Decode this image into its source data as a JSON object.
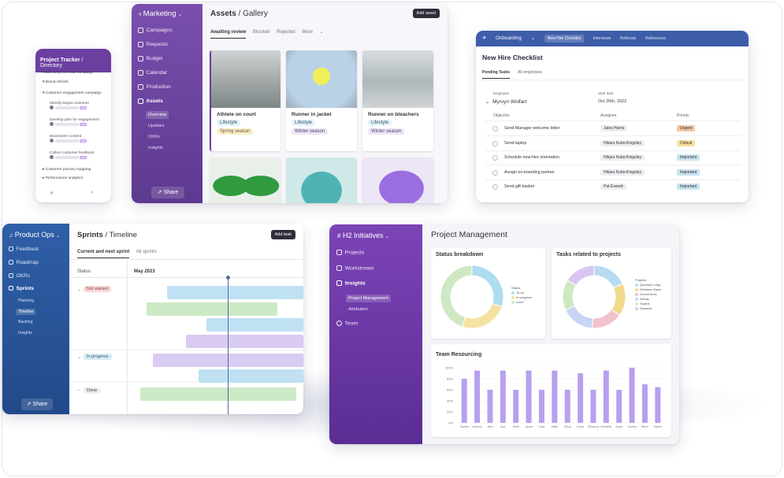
{
  "project_tracker": {
    "title": "Project Tracker",
    "breadcrumb": "Directory",
    "items": [
      "Marketing overhaul campaign",
      "Brand refresh",
      "Customer engagement campaign",
      "Identify target customer",
      "Develop plan for engagement",
      "Brainstorm content",
      "Collect customer feedback",
      "Customer journey mapping",
      "Performance analytics"
    ]
  },
  "marketing": {
    "workspace": "Marketing",
    "nav": [
      "Campaigns",
      "Requests",
      "Budget",
      "Calendar",
      "Production",
      "Assets"
    ],
    "subnav": [
      "Overview",
      "Updates",
      "OKRs",
      "Insights"
    ],
    "share": "Share",
    "title": "Assets",
    "breadcrumb": "Gallery",
    "add_button": "Add asset",
    "tabs": [
      "Awaiting review",
      "Blocked",
      "Rejected",
      "More"
    ],
    "tiles": [
      {
        "name": "Athlete  on court",
        "tag1": "Lifestyle",
        "tag2": "Spring season"
      },
      {
        "name": "Runner in jacket",
        "tag1": "Lifestyle",
        "tag2": "Winter season"
      },
      {
        "name": "Runner on bleachers",
        "tag1": "Lifestyle",
        "tag2": "Winter season"
      }
    ]
  },
  "onboarding": {
    "workspace": "Onboarding",
    "tabs": [
      "New Hire Checklist",
      "Interviews",
      "Referrals",
      "References"
    ],
    "title": "New Hire Checklist",
    "subtabs": [
      "Pending Tasks",
      "All employees"
    ],
    "employee_label": "Employee",
    "employee": "Myrvyn Wolfart",
    "start_label": "Start date",
    "start_date": "Oct 26th, 2022",
    "col_objective": "Objective",
    "col_assignee": "Assignee",
    "col_priority": "Priority",
    "rows": [
      {
        "objective": "Send Manager welcome letter",
        "assignee": "Jules Harris",
        "priority": "Urgent"
      },
      {
        "objective": "Send laptop",
        "assignee": "Hikaru Kubo-Kingsley",
        "priority": "Critical"
      },
      {
        "objective": "Schedule new-hire orientation",
        "assignee": "Hikaru Kubo-Kingsley",
        "priority": "Important"
      },
      {
        "objective": "Assign on-boarding partner",
        "assignee": "Hikaru Kubo-Kingsley",
        "priority": "Important"
      },
      {
        "objective": "Send gift basket",
        "assignee": "Pat Everett",
        "priority": "Important"
      }
    ],
    "priority_colors": {
      "Urgent": "#f3c8a4",
      "Critical": "#f6e19d",
      "Important": "#c9e4f0"
    }
  },
  "product_ops": {
    "workspace": "Product Ops",
    "nav": [
      "Feedback",
      "Roadmap",
      "OKRs",
      "Sprints"
    ],
    "subnav": [
      "Planning",
      "Timeline",
      "Backlog",
      "Insights"
    ],
    "share": "Share",
    "title": "Sprints",
    "breadcrumb": "Timeline",
    "add_button": "Add task",
    "tabs": [
      "Current and next sprint",
      "All sprints"
    ],
    "col_status": "Status",
    "month": "May 2023",
    "statuses": [
      "Not started",
      "In progress",
      "Done"
    ]
  },
  "h2": {
    "workspace": "H2 Initiatives",
    "nav": [
      "Projects",
      "Workstream",
      "Insights",
      "Team"
    ],
    "subnav": [
      "Project Management",
      "Attribution"
    ],
    "title": "Project Management",
    "panel1": "Status breakdown",
    "panel2": "Tasks related to projects",
    "panel3": "Team Resourcing",
    "legend1_title": "Status",
    "legend1": [
      "To-do",
      "In progress",
      "Done"
    ],
    "legend2_title": "Projects",
    "legend2": [
      "Quantum Leap",
      "Wellness Wave",
      "GreenHunts",
      "Infinity",
      "Skyline",
      "Dynamic"
    ]
  },
  "chart_data": [
    {
      "type": "pie",
      "title": "Status breakdown",
      "labels": [
        "To-do",
        "In progress",
        "Done"
      ],
      "values": [
        30,
        25,
        45
      ],
      "colors": [
        "#aedcf0",
        "#f4e3a0",
        "#cfe8c4"
      ]
    },
    {
      "type": "pie",
      "title": "Tasks related to projects",
      "labels": [
        "Quantum Leap",
        "Wellness Wave",
        "GreenHunts",
        "Infinity",
        "Skyline",
        "Dynamic"
      ],
      "values": [
        18,
        17,
        16,
        17,
        16,
        16
      ],
      "colors": [
        "#b7dcf2",
        "#f2d98c",
        "#f3c2cf",
        "#c7d4f4",
        "#cfe8c4",
        "#d9c6f1"
      ]
    },
    {
      "type": "bar",
      "title": "Team Resourcing",
      "categories": [
        "Sophie",
        "Antoine",
        "Aria",
        "Ava",
        "Eliott",
        "Jacob",
        "Luke",
        "Malik",
        "Olivia",
        "Omar",
        "Rebecca",
        "Rochelle",
        "Ryan",
        "Samira",
        "Steve",
        "Valerie"
      ],
      "values": [
        80,
        95,
        60,
        95,
        60,
        95,
        60,
        95,
        60,
        90,
        60,
        95,
        60,
        100,
        70,
        65
      ],
      "ylim": [
        0,
        100
      ],
      "ytick_labels": [
        "0%",
        "20%",
        "40%",
        "60%",
        "80%",
        "100%"
      ]
    }
  ]
}
